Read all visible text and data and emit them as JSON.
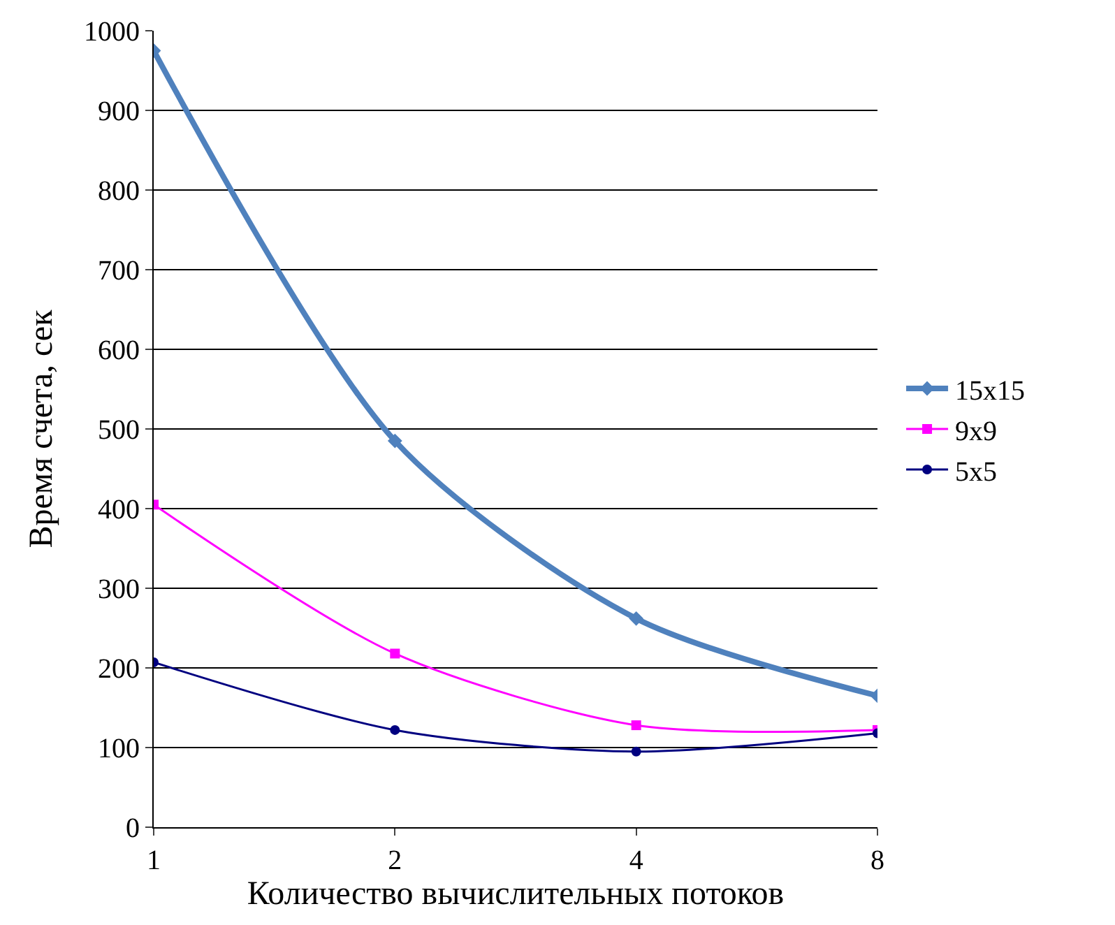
{
  "chart_data": {
    "type": "line",
    "xlabel": "Количество вычислительных потоков",
    "ylabel": "Время счета, сек",
    "categories": [
      "1",
      "2",
      "4",
      "8"
    ],
    "series": [
      {
        "name": "15x15",
        "color": "#4f81bd",
        "marker": "diamond",
        "values": [
          975,
          485,
          262,
          165
        ]
      },
      {
        "name": "9x9",
        "color": "#ff00ff",
        "marker": "square",
        "values": [
          405,
          218,
          128,
          122
        ]
      },
      {
        "name": "5x5",
        "color": "#000080",
        "marker": "circle",
        "values": [
          207,
          122,
          95,
          118
        ]
      }
    ],
    "ylim": [
      0,
      1000
    ],
    "yticks": [
      0,
      100,
      200,
      300,
      400,
      500,
      600,
      700,
      800,
      900,
      1000
    ],
    "grid": "y",
    "legend": "right",
    "line_style": "solid"
  }
}
